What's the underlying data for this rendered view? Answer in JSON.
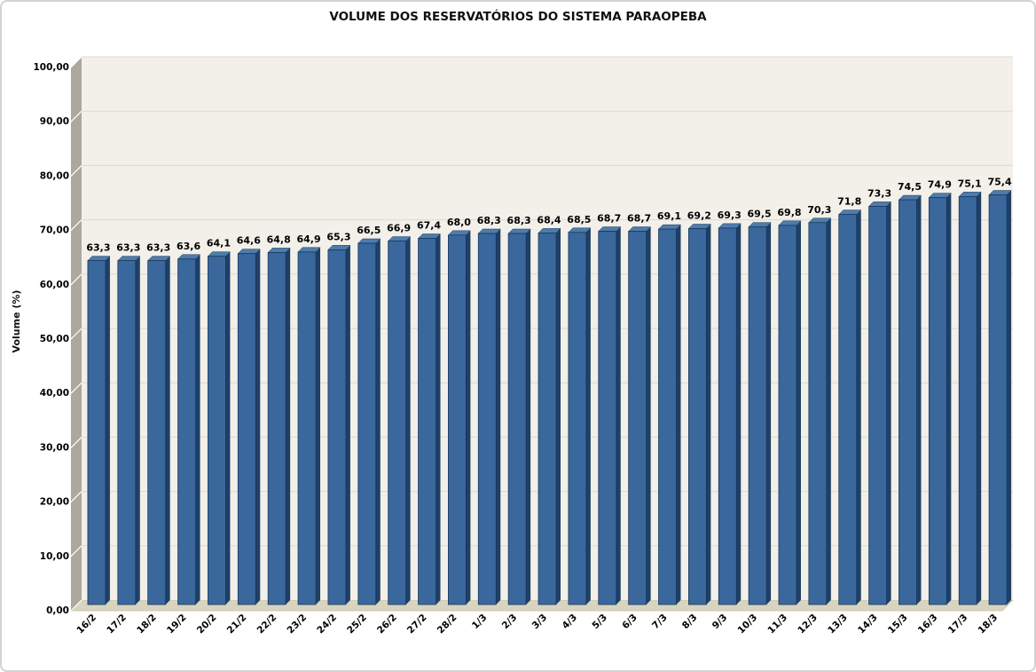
{
  "chart_data": {
    "type": "bar",
    "style": "3d-column",
    "title": "VOLUME DOS RESERVATÓRIOS DO SISTEMA PARAOPEBA",
    "xlabel": "",
    "ylabel": "Volume (%)",
    "legend": "none",
    "grid": true,
    "ylim": [
      0,
      100
    ],
    "ytick_step": 10,
    "ytick_labels": [
      "0,00",
      "10,00",
      "20,00",
      "30,00",
      "40,00",
      "50,00",
      "60,00",
      "70,00",
      "80,00",
      "90,00",
      "100,00"
    ],
    "categories": [
      "16/2",
      "17/2",
      "18/2",
      "19/2",
      "20/2",
      "21/2",
      "22/2",
      "23/2",
      "24/2",
      "25/2",
      "26/2",
      "27/2",
      "28/2",
      "1/3",
      "2/3",
      "3/3",
      "4/3",
      "5/3",
      "6/3",
      "7/3",
      "8/3",
      "9/3",
      "10/3",
      "11/3",
      "12/3",
      "13/3",
      "14/3",
      "15/3",
      "16/3",
      "17/3",
      "18/3"
    ],
    "values": [
      63.3,
      63.3,
      63.3,
      63.6,
      64.1,
      64.6,
      64.8,
      64.9,
      65.3,
      66.5,
      66.9,
      67.4,
      68.0,
      68.3,
      68.3,
      68.4,
      68.5,
      68.7,
      68.7,
      69.1,
      69.2,
      69.3,
      69.5,
      69.8,
      70.3,
      71.8,
      73.3,
      74.5,
      74.9,
      75.1,
      75.4
    ],
    "data_labels": [
      "63,3",
      "63,3",
      "63,3",
      "63,6",
      "64,1",
      "64,6",
      "64,8",
      "64,9",
      "65,3",
      "66,5",
      "66,9",
      "67,4",
      "68,0",
      "68,3",
      "68,3",
      "68,4",
      "68,5",
      "68,7",
      "68,7",
      "69,1",
      "69,2",
      "69,3",
      "69,5",
      "69,8",
      "70,3",
      "71,8",
      "73,3",
      "74,5",
      "74,9",
      "75,1",
      "75,4"
    ]
  },
  "colors": {
    "bar_front": "#3A679C",
    "bar_top": "#4E7CAB",
    "bar_side": "#1F4066",
    "bar_edge": "#16335A",
    "wall_side": "#ABA89D",
    "wall_back": "#F2F0E9",
    "floor": "#D8D4BE",
    "floor_edge": "#C2BEA6",
    "gridline": "#DCD9CE",
    "wall_tick": "#FFFFFF",
    "text": "#000000",
    "frame_border": "#D2D2D2"
  }
}
